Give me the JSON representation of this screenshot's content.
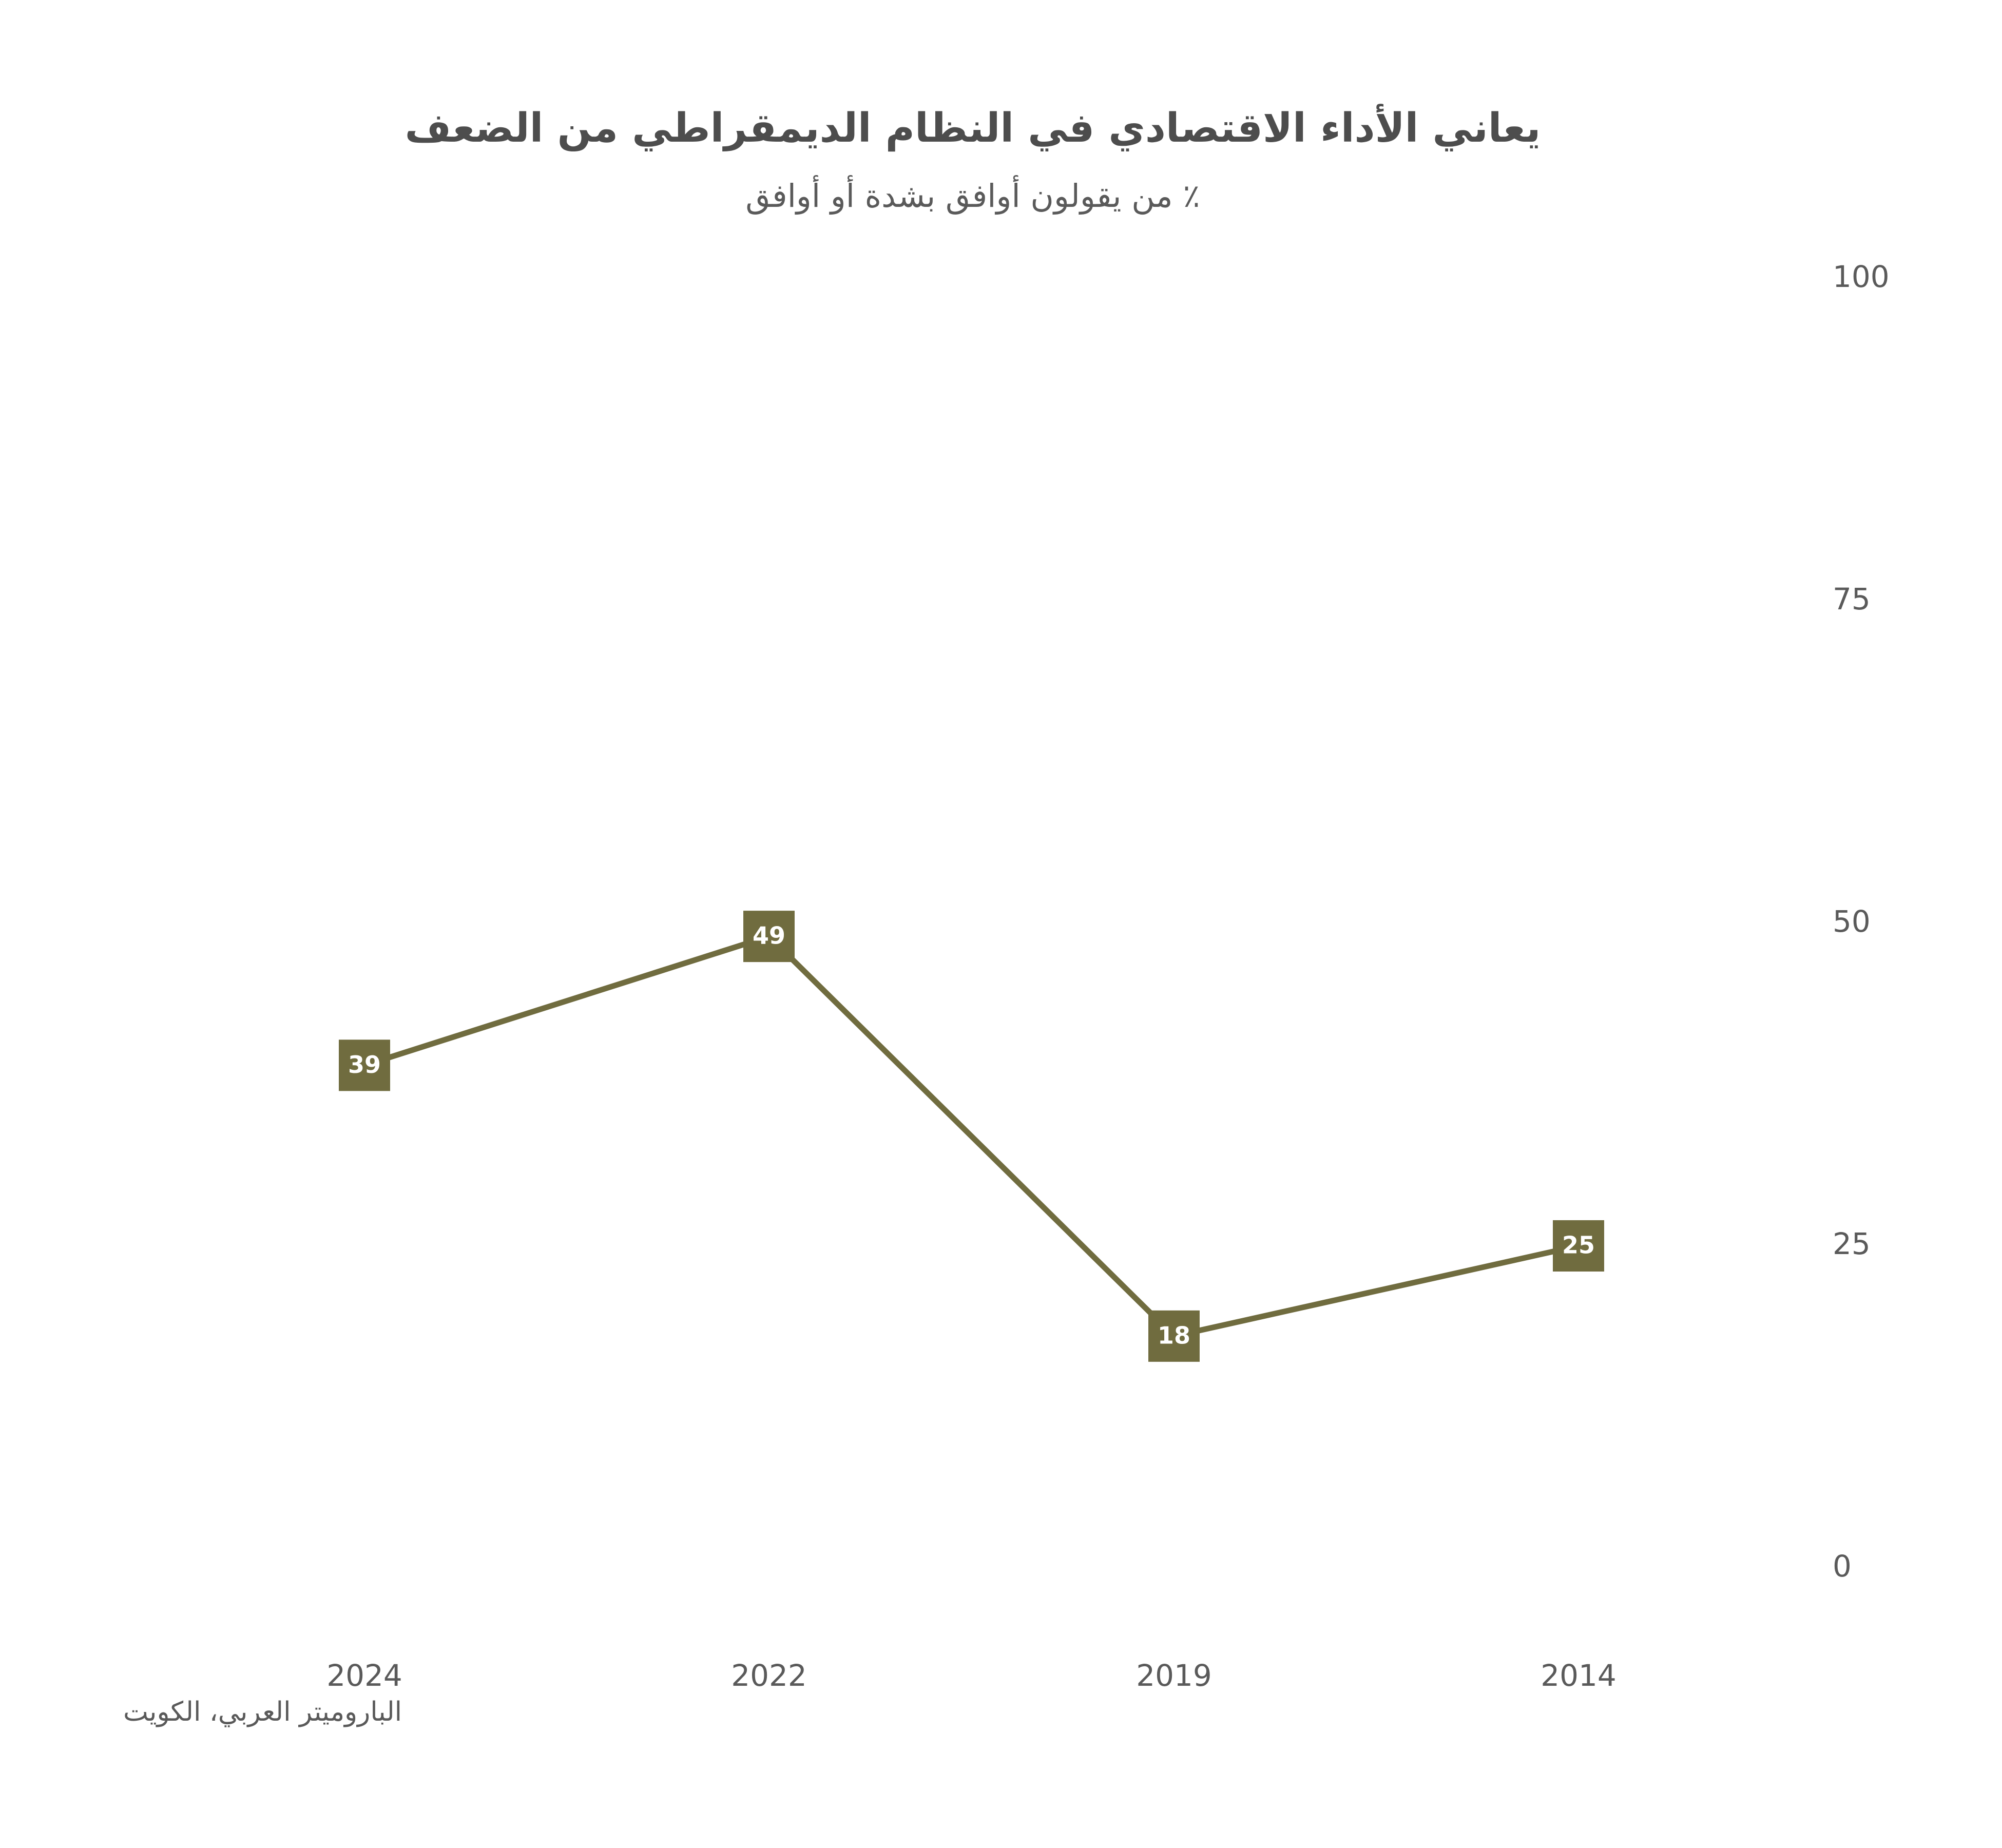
{
  "chart_data": {
    "type": "line",
    "title": "يعاني الأداء الاقتصادي في النظام الديمقراطي من الضعف",
    "subtitle": "٪ من يقولون أوافق بشدة أو أوافق",
    "source": "الباروميتر العربي، الكويت",
    "categories": [
      "2024",
      "2022",
      "2019",
      "2014"
    ],
    "series": [
      {
        "values": [
          39,
          49,
          18,
          25
        ],
        "color": "#706c3f"
      }
    ],
    "y_ticks": [
      0,
      25,
      50,
      75,
      100
    ],
    "ylim": [
      0,
      100
    ],
    "y_axis_position": "right",
    "grid": false,
    "legend": "none",
    "xlabel": "",
    "ylabel": ""
  }
}
